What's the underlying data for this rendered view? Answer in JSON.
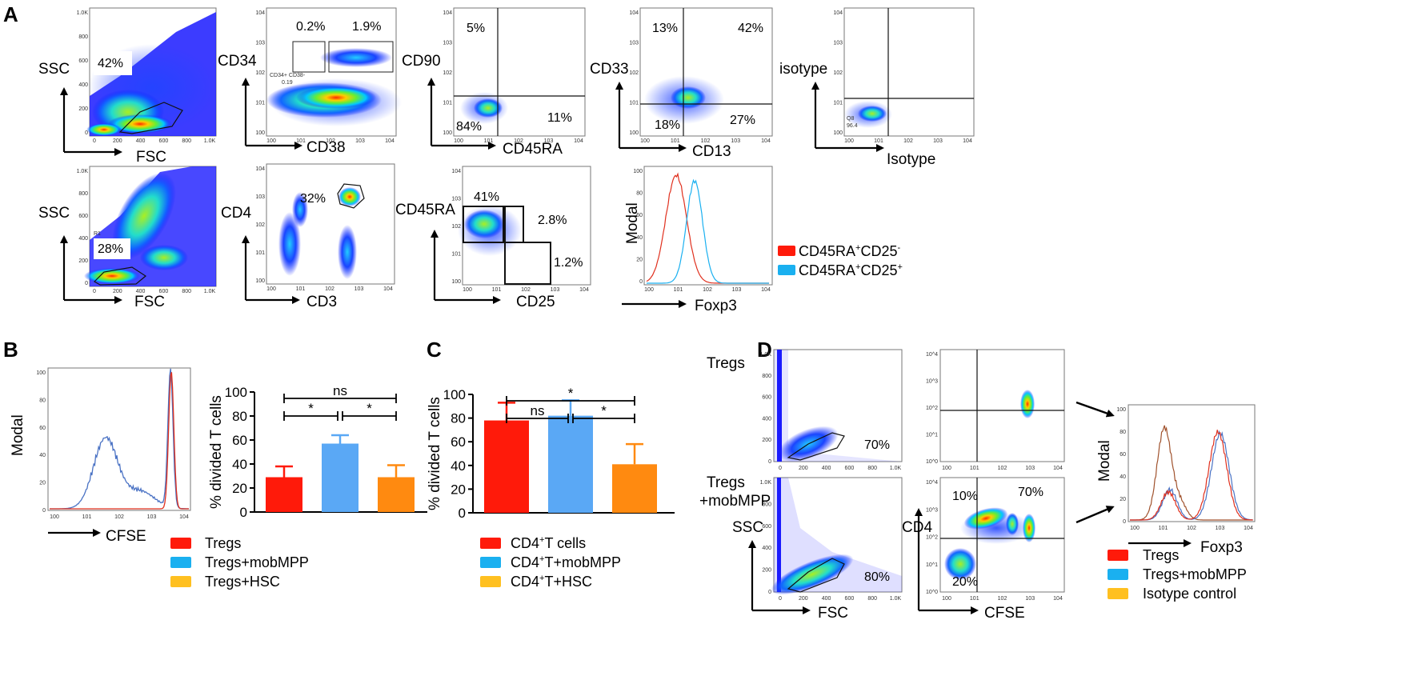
{
  "panels": {
    "a": "A",
    "b": "B",
    "c": "C",
    "d": "D"
  },
  "colors": {
    "red": "#ff1a0a",
    "blue": "#5aa8f5",
    "orange": "#ff8a10",
    "legend_orange": "#ffc020",
    "hist_blue": "#4a72c4",
    "hist_red": "#e0301e",
    "hist_brown": "#a0522d",
    "dot_blue": "#0a1cff"
  },
  "panelA": {
    "row1": [
      {
        "xlabel": "FSC",
        "ylabel": "SSC",
        "pct": [
          "42%"
        ],
        "xticks": [
          "0",
          "200",
          "400",
          "600",
          "800",
          "1.0K"
        ],
        "yticks": [
          "0",
          "200",
          "400",
          "600",
          "800",
          "1.0K"
        ]
      },
      {
        "xlabel": "CD38",
        "ylabel": "CD34",
        "pct": [
          "0.2%",
          "1.9%"
        ],
        "gate_name": "CD34+ CD38-",
        "gate_value": "0.19",
        "xticks": [
          "10^0",
          "10^1",
          "10^2",
          "10^3",
          "10^4"
        ],
        "yticks": [
          "10^0",
          "10^1",
          "10^2",
          "10^3",
          "10^4"
        ]
      },
      {
        "xlabel": "CD45RA",
        "ylabel": "CD90",
        "pct": [
          "5%",
          "84%",
          "11%"
        ],
        "xticks": [
          "10^0",
          "10^1",
          "10^2",
          "10^3",
          "10^4"
        ],
        "yticks": [
          "10^0",
          "10^1",
          "10^2",
          "10^3",
          "10^4"
        ]
      },
      {
        "xlabel": "CD13",
        "ylabel": "CD33",
        "pct": [
          "13%",
          "42%",
          "18%",
          "27%"
        ],
        "xticks": [
          "10^0",
          "10^1",
          "10^2",
          "10^3",
          "10^4"
        ],
        "yticks": [
          "10^0",
          "10^1",
          "10^2",
          "10^3",
          "10^4"
        ]
      },
      {
        "xlabel": "Isotype",
        "ylabel": "isotype",
        "pct": [],
        "gate_name": "Q8",
        "gate_value": "96.4",
        "xticks": [
          "10^0",
          "10^1",
          "10^2",
          "10^3",
          "10^4"
        ],
        "yticks": [
          "10^0",
          "10^1",
          "10^2",
          "10^3",
          "10^4"
        ]
      }
    ],
    "row2": [
      {
        "xlabel": "FSC",
        "ylabel": "SSC",
        "pct": [
          "28%"
        ],
        "gate_name": "R1",
        "xticks": [
          "0",
          "200",
          "400",
          "600",
          "800",
          "1.0K"
        ],
        "yticks": [
          "0",
          "200",
          "400",
          "600",
          "800",
          "1.0K"
        ]
      },
      {
        "xlabel": "CD3",
        "ylabel": "CD4",
        "pct": [
          "32%"
        ],
        "xticks": [
          "10^0",
          "10^1",
          "10^2",
          "10^3",
          "10^4"
        ],
        "yticks": [
          "10^0",
          "10^1",
          "10^2",
          "10^3",
          "10^4"
        ]
      },
      {
        "xlabel": "CD25",
        "ylabel": "CD45RA",
        "pct": [
          "41%",
          "2.8%",
          "1.2%"
        ],
        "xticks": [
          "10^0",
          "10^1",
          "10^2",
          "10^3",
          "10^4"
        ],
        "yticks": [
          "10^0",
          "10^1",
          "10^2",
          "10^3",
          "10^4"
        ]
      },
      {
        "xlabel": "Foxp3",
        "ylabel": "Modal",
        "pct": [],
        "xticks": [
          "10^0",
          "10^1",
          "10^2",
          "10^3",
          "10^4"
        ],
        "yticks": [
          "0",
          "20",
          "40",
          "60",
          "80",
          "100"
        ]
      }
    ],
    "legend": [
      {
        "main": "CD45RA",
        "sup1": "+",
        "mid": "CD25",
        "sup2": "-",
        "color": "#ff1a0a"
      },
      {
        "main": "CD45RA",
        "sup1": "+",
        "mid": "CD25",
        "sup2": "+",
        "color": "#1ab0f0"
      }
    ]
  },
  "panelB": {
    "hist": {
      "xlabel": "CFSE",
      "ylabel": "Modal",
      "xticks": [
        "10^0",
        "10^1",
        "10^2",
        "10^3",
        "10^4"
      ],
      "yticks": [
        "0",
        "20",
        "40",
        "60",
        "80",
        "100"
      ]
    },
    "legend": [
      {
        "label": "Tregs",
        "color": "#ff1a0a"
      },
      {
        "label": "Tregs+mobMPP",
        "color": "#1ab0f0"
      },
      {
        "label": "Tregs+HSC",
        "color": "#ffc020"
      }
    ]
  },
  "panelC": {
    "legend": [
      {
        "main": "CD4",
        "sup": "+",
        "rest": "T cells",
        "color": "#ff1a0a"
      },
      {
        "main": "CD4",
        "sup": "+",
        "rest": "T+mobMPP",
        "color": "#1ab0f0"
      },
      {
        "main": "CD4",
        "sup": "+",
        "rest": "T+HSC",
        "color": "#ffc020"
      }
    ]
  },
  "panelD": {
    "row_labels": [
      "Tregs",
      "Tregs",
      "+mobMPP"
    ],
    "scatter1": {
      "xlabel": "FSC",
      "ylabel": "SSC",
      "pct_top": "70%",
      "pct_bottom": "80%",
      "xticks": [
        "0",
        "200",
        "400",
        "600",
        "800",
        "1.0K"
      ],
      "yticks": [
        "0",
        "200",
        "400",
        "600",
        "800",
        "1.0K"
      ]
    },
    "scatter2": {
      "xlabel": "CFSE",
      "ylabel": "CD4",
      "pct": [
        "10%",
        "70%",
        "20%"
      ],
      "xticks": [
        "10^0",
        "10^1",
        "10^2",
        "10^3",
        "10^4"
      ],
      "yticks": [
        "10^0",
        "10^1",
        "10^2",
        "10^3",
        "10^4"
      ]
    },
    "hist": {
      "xlabel": "Foxp3",
      "ylabel": "Modal",
      "xticks": [
        "10^0",
        "10^1",
        "10^2",
        "10^3",
        "10^4"
      ],
      "yticks": [
        "0",
        "20",
        "40",
        "60",
        "80",
        "100"
      ]
    },
    "legend": [
      {
        "label": "Tregs",
        "color": "#ff1a0a"
      },
      {
        "label": "Tregs+mobMPP",
        "color": "#1ab0f0"
      },
      {
        "label": "Isotype control",
        "color": "#ffc020"
      }
    ]
  },
  "chart_data": [
    {
      "type": "bar",
      "panel": "B",
      "categories": [
        "Tregs",
        "Tregs+mobMPP",
        "Tregs+HSC"
      ],
      "values": [
        29,
        57,
        29
      ],
      "errors": [
        9,
        7,
        10
      ],
      "colors": [
        "#ff1a0a",
        "#5aa8f5",
        "#ff8a10"
      ],
      "ylabel": "% divided T cells",
      "ylim": [
        0,
        100
      ],
      "yticks": [
        "0",
        "20",
        "40",
        "60",
        "80",
        "100"
      ],
      "significance": [
        {
          "from": 0,
          "to": 2,
          "label": "ns",
          "level": 0
        },
        {
          "from": 0,
          "to": 1,
          "label": "*",
          "level": 1
        },
        {
          "from": 1,
          "to": 2,
          "label": "*",
          "level": 1
        }
      ]
    },
    {
      "type": "bar",
      "panel": "C",
      "categories": [
        "CD4+T cells",
        "CD4+T+mobMPP",
        "CD4+T+HSC"
      ],
      "values": [
        78,
        82,
        41
      ],
      "errors": [
        15,
        13,
        17
      ],
      "colors": [
        "#ff1a0a",
        "#5aa8f5",
        "#ff8a10"
      ],
      "ylabel": "% divided T cells",
      "ylim": [
        0,
        100
      ],
      "yticks": [
        "0",
        "20",
        "40",
        "60",
        "80",
        "100"
      ],
      "significance": [
        {
          "from": 0,
          "to": 2,
          "label": "*",
          "level": 0
        },
        {
          "from": 0,
          "to": 1,
          "label": "ns",
          "level": 1
        },
        {
          "from": 1,
          "to": 2,
          "label": "*",
          "level": 1
        }
      ]
    }
  ]
}
